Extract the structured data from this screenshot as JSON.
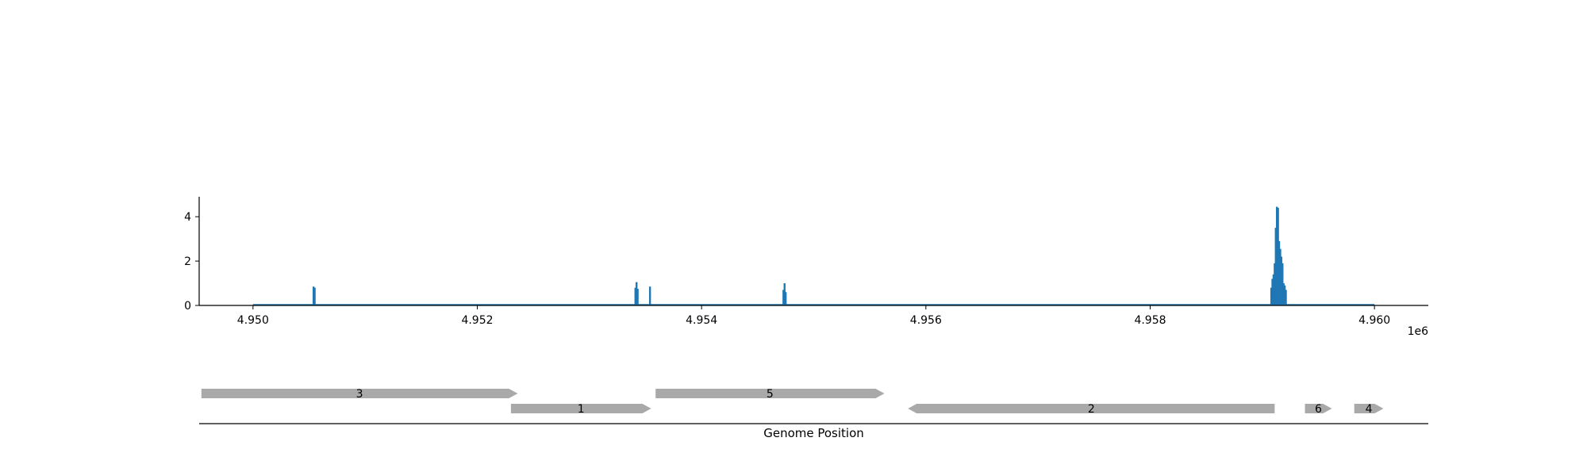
{
  "chart_data": [
    {
      "type": "line",
      "title": "",
      "xlabel": "",
      "ylabel": "",
      "x_offset_label": "1e6",
      "xlim": [
        4949520,
        4960480
      ],
      "ylim": [
        0,
        4.9
      ],
      "x_ticks": [
        4950000,
        4952000,
        4954000,
        4956000,
        4958000,
        4960000
      ],
      "x_tick_labels": [
        "4.950",
        "4.952",
        "4.954",
        "4.956",
        "4.958",
        "4.960"
      ],
      "y_ticks": [
        0,
        2,
        4
      ],
      "y_tick_labels": [
        "0",
        "2",
        "4"
      ],
      "grid": false,
      "series_color": "#1f77b4",
      "series": [
        {
          "name": "",
          "baseline_x_range": [
            4950000,
            4960000
          ],
          "x": [
            4950540,
            4950550,
            4953410,
            4953420,
            4953430,
            4953540,
            4954730,
            4954740,
            4954750,
            4959080,
            4959090,
            4959100,
            4959110,
            4959120,
            4959130,
            4959140,
            4959150,
            4959160,
            4959170,
            4959180,
            4959190,
            4959200,
            4959210
          ],
          "y": [
            0.85,
            0.8,
            0.8,
            1.05,
            0.75,
            0.85,
            0.7,
            1.0,
            0.6,
            0.8,
            1.2,
            1.4,
            1.9,
            3.5,
            4.45,
            4.4,
            2.9,
            2.55,
            2.2,
            1.9,
            1.0,
            0.9,
            0.7
          ]
        }
      ]
    },
    {
      "type": "gene_track",
      "xlabel": "Genome Position",
      "xlim": [
        4949520,
        4960480
      ],
      "feature_color": "#a9a9a9",
      "features": [
        {
          "label": "3",
          "start": 4949540,
          "end": 4952360,
          "strand": "+",
          "row": 0
        },
        {
          "label": "1",
          "start": 4952300,
          "end": 4953550,
          "strand": "+",
          "row": 1
        },
        {
          "label": "5",
          "start": 4953590,
          "end": 4955630,
          "strand": "+",
          "row": 0
        },
        {
          "label": "2",
          "start": 4955840,
          "end": 4959110,
          "strand": "-",
          "row": 1
        },
        {
          "label": "6",
          "start": 4959380,
          "end": 4959620,
          "strand": "+",
          "row": 1
        },
        {
          "label": "4",
          "start": 4959820,
          "end": 4960080,
          "strand": "+",
          "row": 1
        }
      ]
    }
  ]
}
